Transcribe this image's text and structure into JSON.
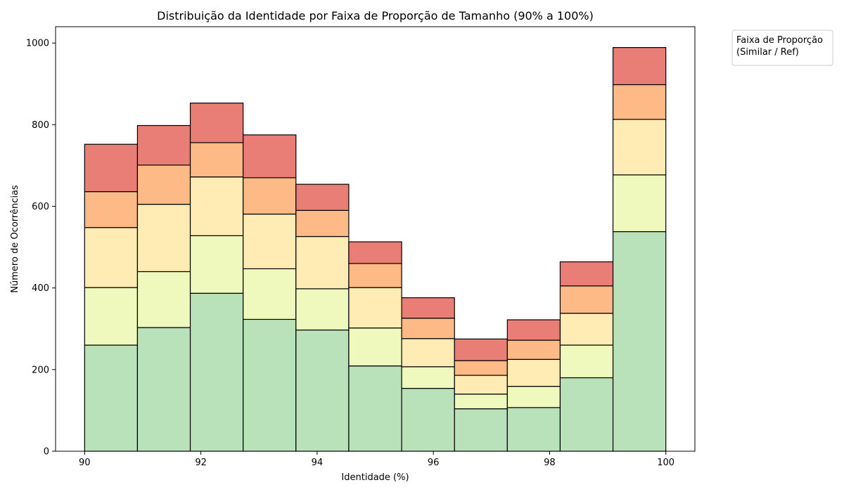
{
  "chart_data": {
    "type": "bar",
    "stacked": true,
    "title": "Distribuição da Identidade por Faixa de Proporção de Tamanho (90% a 100%)",
    "xlabel": "Identidade (%)",
    "ylabel": "Número de Ocorrências",
    "xlim": [
      89.5,
      100.5
    ],
    "ylim": [
      0,
      1040
    ],
    "x_ticks": [
      90,
      92,
      94,
      96,
      98,
      100
    ],
    "y_ticks": [
      0,
      200,
      400,
      600,
      800,
      1000
    ],
    "bin_edges": [
      90,
      90.909,
      91.818,
      92.727,
      93.636,
      94.545,
      95.455,
      96.364,
      97.273,
      98.182,
      99.091,
      100
    ],
    "series": [
      {
        "color": "#b9e1ba",
        "values": [
          260,
          303,
          387,
          323,
          297,
          209,
          154,
          104,
          107,
          180,
          538
        ]
      },
      {
        "color": "#f0f9bd",
        "values": [
          141,
          137,
          141,
          124,
          101,
          93,
          53,
          36,
          52,
          80,
          139
        ]
      },
      {
        "color": "#ffecb4",
        "values": [
          147,
          165,
          144,
          134,
          128,
          99,
          69,
          46,
          66,
          78,
          136
        ]
      },
      {
        "color": "#fdba87",
        "values": [
          88,
          96,
          84,
          89,
          64,
          59,
          50,
          36,
          47,
          67,
          85
        ]
      },
      {
        "color": "#e97e77",
        "values": [
          116,
          97,
          97,
          105,
          64,
          53,
          50,
          53,
          50,
          59,
          91
        ]
      }
    ],
    "legend": {
      "title": "Faixa de Proporção\n(Similar / Ref)",
      "placement": "outside-top-right"
    },
    "grid": false
  }
}
